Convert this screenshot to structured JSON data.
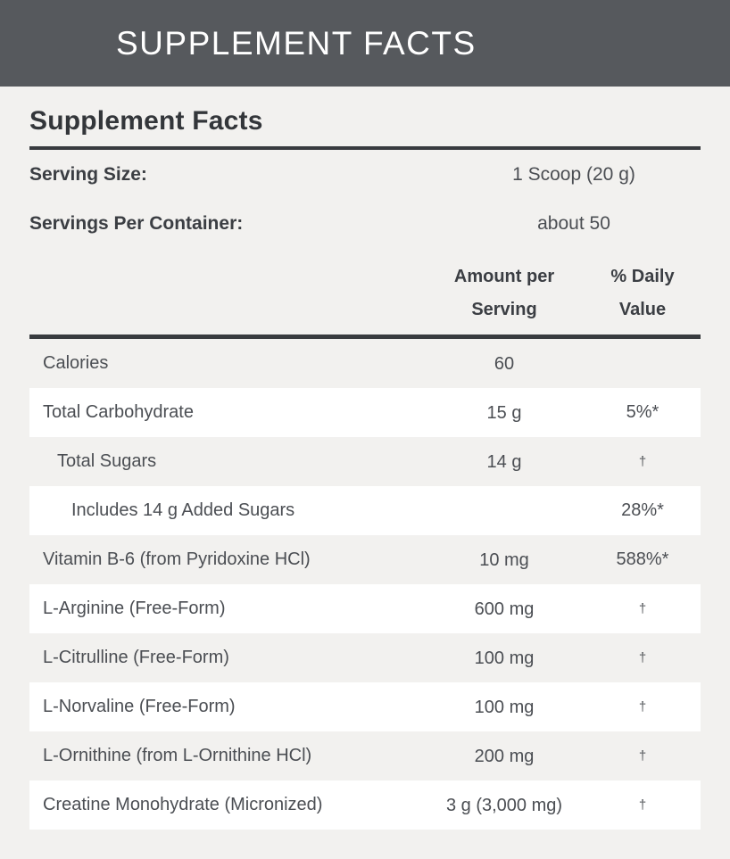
{
  "hero": {
    "title": "SUPPLEMENT FACTS"
  },
  "panel": {
    "title": "Supplement Facts",
    "serving_rows": [
      {
        "label": "Serving Size:",
        "value": "1 Scoop (20 g)"
      },
      {
        "label": "Servings Per Container:",
        "value": "about 50"
      }
    ],
    "columns": {
      "amount": "Amount per Serving",
      "dv": "% Daily Value"
    },
    "rows": [
      {
        "label": "Calories",
        "amount": "60",
        "dv": "",
        "indent": 0,
        "shaded": false,
        "dagger": false
      },
      {
        "label": "Total Carbohydrate",
        "amount": "15 g",
        "dv": "5%*",
        "indent": 0,
        "shaded": true,
        "dagger": false
      },
      {
        "label": "Total Sugars",
        "amount": "14 g",
        "dv": "†",
        "indent": 1,
        "shaded": false,
        "dagger": true
      },
      {
        "label": "Includes 14 g Added Sugars",
        "amount": "",
        "dv": "28%*",
        "indent": 2,
        "shaded": true,
        "dagger": false
      },
      {
        "label": "Vitamin B-6 (from Pyridoxine HCl)",
        "amount": "10 mg",
        "dv": "588%*",
        "indent": 0,
        "shaded": false,
        "dagger": false
      },
      {
        "label": "L-Arginine (Free-Form)",
        "amount": "600 mg",
        "dv": "†",
        "indent": 0,
        "shaded": true,
        "dagger": true
      },
      {
        "label": "L-Citrulline (Free-Form)",
        "amount": "100 mg",
        "dv": "†",
        "indent": 0,
        "shaded": false,
        "dagger": true
      },
      {
        "label": "L-Norvaline (Free-Form)",
        "amount": "100 mg",
        "dv": "†",
        "indent": 0,
        "shaded": true,
        "dagger": true
      },
      {
        "label": "L-Ornithine (from L-Ornithine HCl)",
        "amount": "200 mg",
        "dv": "†",
        "indent": 0,
        "shaded": false,
        "dagger": true
      },
      {
        "label": "Creatine Monohydrate (Micronized)",
        "amount": "3 g (3,000 mg)",
        "dv": "†",
        "indent": 0,
        "shaded": true,
        "dagger": true
      }
    ]
  },
  "colors": {
    "header_bar": "#56595d",
    "heading_text": "#33363a",
    "body_text": "#4b4e53",
    "page_bg": "#f2f1ef",
    "row_stripe": "#ffffff",
    "rule": "#383b3f"
  }
}
